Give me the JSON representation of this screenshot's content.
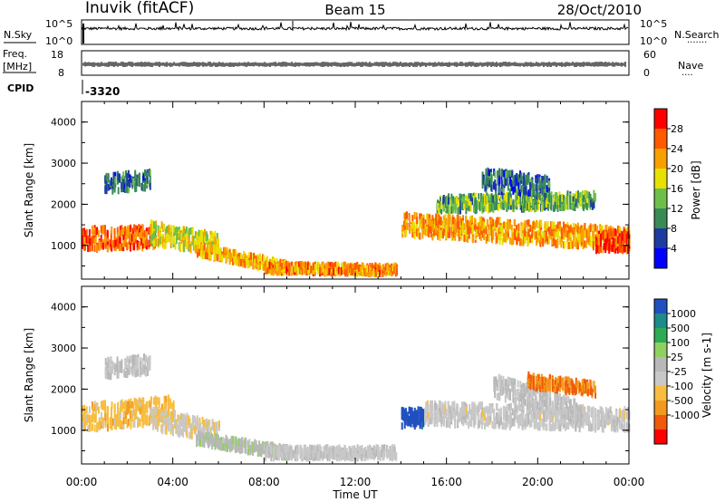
{
  "header": {
    "station": "Inuvik (fitACF)",
    "beam": "Beam 15",
    "date": "28/Oct/2010"
  },
  "panels": {
    "nsky_label": "N.Sky",
    "nsky_ticks": [
      "10^5",
      "10^0"
    ],
    "nsearch_label": "N.Search",
    "nsearch_ticks": [
      "10^5",
      "10^0"
    ],
    "freq_label_line1": "Freq.",
    "freq_label_line2": "[MHz]",
    "freq_ticks": [
      "18",
      "8"
    ],
    "nave_label": "Nave",
    "nave_ticks": [
      "60",
      "0"
    ],
    "cpid_label": "CPID",
    "cpid_value": "-3320"
  },
  "axes": {
    "ylabel": "Slant Range [km]",
    "xlabel": "Time UT",
    "yticks": [
      "1000",
      "2000",
      "3000",
      "4000"
    ],
    "xticks": [
      "00:00",
      "04:00",
      "08:00",
      "12:00",
      "16:00",
      "20:00",
      "00:00"
    ]
  },
  "colors": {
    "power_scale": [
      "#0000ff",
      "#1c3ca0",
      "#3a8a55",
      "#6dbf4a",
      "#e8e000",
      "#f8a000",
      "#ff5a00",
      "#ff0000"
    ],
    "velocity_scale": [
      "#ff0000",
      "#f05a0a",
      "#f29a1e",
      "#f7bd3f",
      "#c8c8c8",
      "#b8b8b8",
      "#8fd060",
      "#2eaa55",
      "#1e8a8a",
      "#2050c0"
    ]
  },
  "chart_data": [
    {
      "type": "heatmap",
      "name": "power",
      "title": "Inuvik (fitACF)",
      "xlabel": "Time UT",
      "ylabel": "Slant Range [km]",
      "xlim": [
        0,
        24
      ],
      "ylim": [
        180,
        4500
      ],
      "colorbar": {
        "label": "Power [dB]",
        "ticks": [
          "4",
          "8",
          "12",
          "16",
          "20",
          "24",
          "28"
        ],
        "range": [
          0,
          30
        ]
      },
      "bands": [
        {
          "t0": 0.0,
          "t1": 3.2,
          "center_start": 1150,
          "center_end": 1200,
          "width": 500,
          "value": 24
        },
        {
          "t0": 1.0,
          "t1": 3.0,
          "center_start": 2500,
          "center_end": 2600,
          "width": 400,
          "value": 8
        },
        {
          "t0": 3.0,
          "t1": 6.0,
          "center_start": 1300,
          "center_end": 1000,
          "width": 500,
          "value": 17
        },
        {
          "t0": 5.0,
          "t1": 9.0,
          "center_start": 900,
          "center_end": 450,
          "width": 250,
          "value": 20
        },
        {
          "t0": 8.0,
          "t1": 13.8,
          "center_start": 450,
          "center_end": 400,
          "width": 200,
          "value": 22
        },
        {
          "t0": 14.0,
          "t1": 24.0,
          "center_start": 1500,
          "center_end": 1150,
          "width": 500,
          "value": 21
        },
        {
          "t0": 15.5,
          "t1": 22.5,
          "center_start": 2000,
          "center_end": 2100,
          "width": 350,
          "value": 12
        },
        {
          "t0": 17.5,
          "t1": 20.5,
          "center_start": 2600,
          "center_end": 2400,
          "width": 500,
          "value": 7
        },
        {
          "t0": 22.5,
          "t1": 24.0,
          "center_start": 1100,
          "center_end": 1100,
          "width": 450,
          "value": 27
        }
      ]
    },
    {
      "type": "heatmap",
      "name": "velocity",
      "xlabel": "Time UT",
      "ylabel": "Slant Range [km]",
      "xlim": [
        0,
        24
      ],
      "ylim": [
        180,
        4500
      ],
      "colorbar": {
        "label": "Velocity [m s-1]",
        "ticks": [
          "1000",
          "500",
          "100",
          "25",
          "-25",
          "-100",
          "-500",
          "-1000"
        ],
        "range": [
          -1000,
          1000
        ]
      },
      "bands": [
        {
          "t0": 0.0,
          "t1": 4.0,
          "center_start": 1300,
          "center_end": 1500,
          "width": 600,
          "value": -300
        },
        {
          "t0": 1.0,
          "t1": 3.0,
          "center_start": 2500,
          "center_end": 2600,
          "width": 400,
          "value": 0
        },
        {
          "t0": 3.0,
          "t1": 6.0,
          "center_start": 1300,
          "center_end": 900,
          "width": 500,
          "value": -150
        },
        {
          "t0": 5.0,
          "t1": 9.0,
          "center_start": 800,
          "center_end": 450,
          "width": 250,
          "value": 120
        },
        {
          "t0": 8.0,
          "t1": 13.8,
          "center_start": 450,
          "center_end": 450,
          "width": 250,
          "value": -60
        },
        {
          "t0": 14.0,
          "t1": 15.0,
          "center_start": 1300,
          "center_end": 1300,
          "width": 400,
          "value": 900
        },
        {
          "t0": 15.0,
          "t1": 24.0,
          "center_start": 1400,
          "center_end": 1250,
          "width": 500,
          "value": -80
        },
        {
          "t0": 18.0,
          "t1": 22.0,
          "center_start": 2100,
          "center_end": 1400,
          "width": 500,
          "value": 0
        },
        {
          "t0": 19.5,
          "t1": 22.5,
          "center_start": 2200,
          "center_end": 2000,
          "width": 300,
          "value": -600
        }
      ]
    }
  ]
}
